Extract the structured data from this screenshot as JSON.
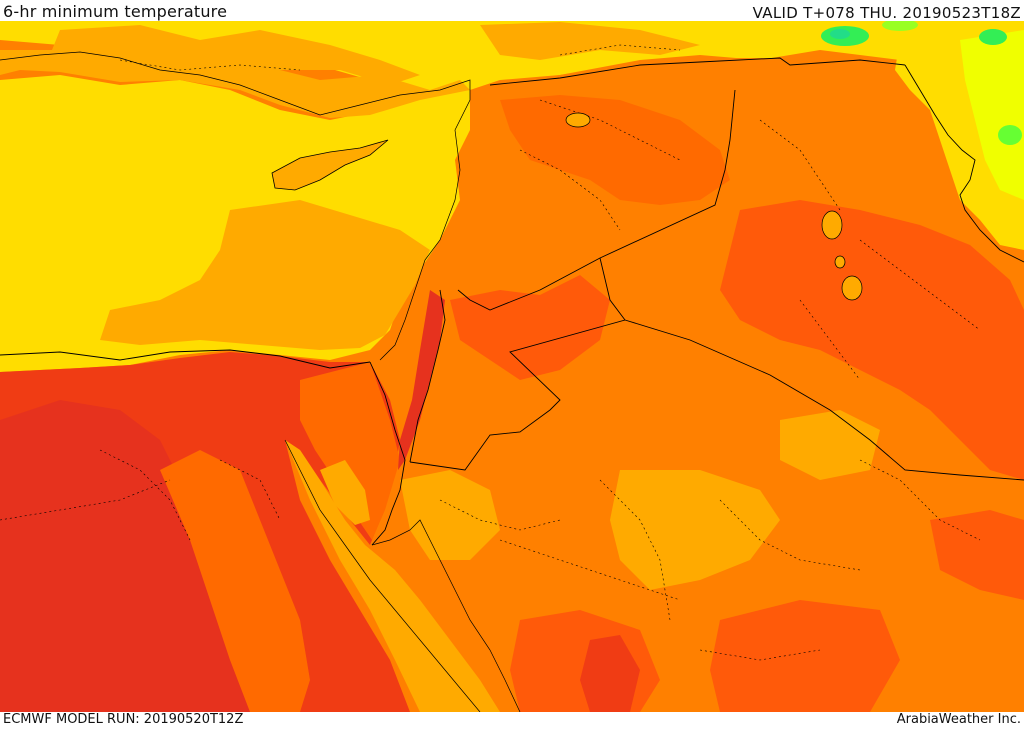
{
  "header": {
    "title": "6-hr minimum temperature",
    "valid_time": "VALID T+078 THU. 20190523T18Z"
  },
  "footer": {
    "model_run": "ECMWF MODEL RUN: 20190520T12Z",
    "provider": "ArabiaWeather Inc."
  },
  "map": {
    "region": "Eastern Mediterranean and Middle East",
    "fill_colors": {
      "yellow": "#ffdd00",
      "light_orange": "#ffaa00",
      "orange": "#ff8000",
      "dark_orange": "#ff5a0a",
      "red": "#f03c14",
      "light_yellow": "#f0ff00",
      "green": "#33ee55",
      "teal": "#22dd88"
    },
    "border_color": "#000000"
  }
}
